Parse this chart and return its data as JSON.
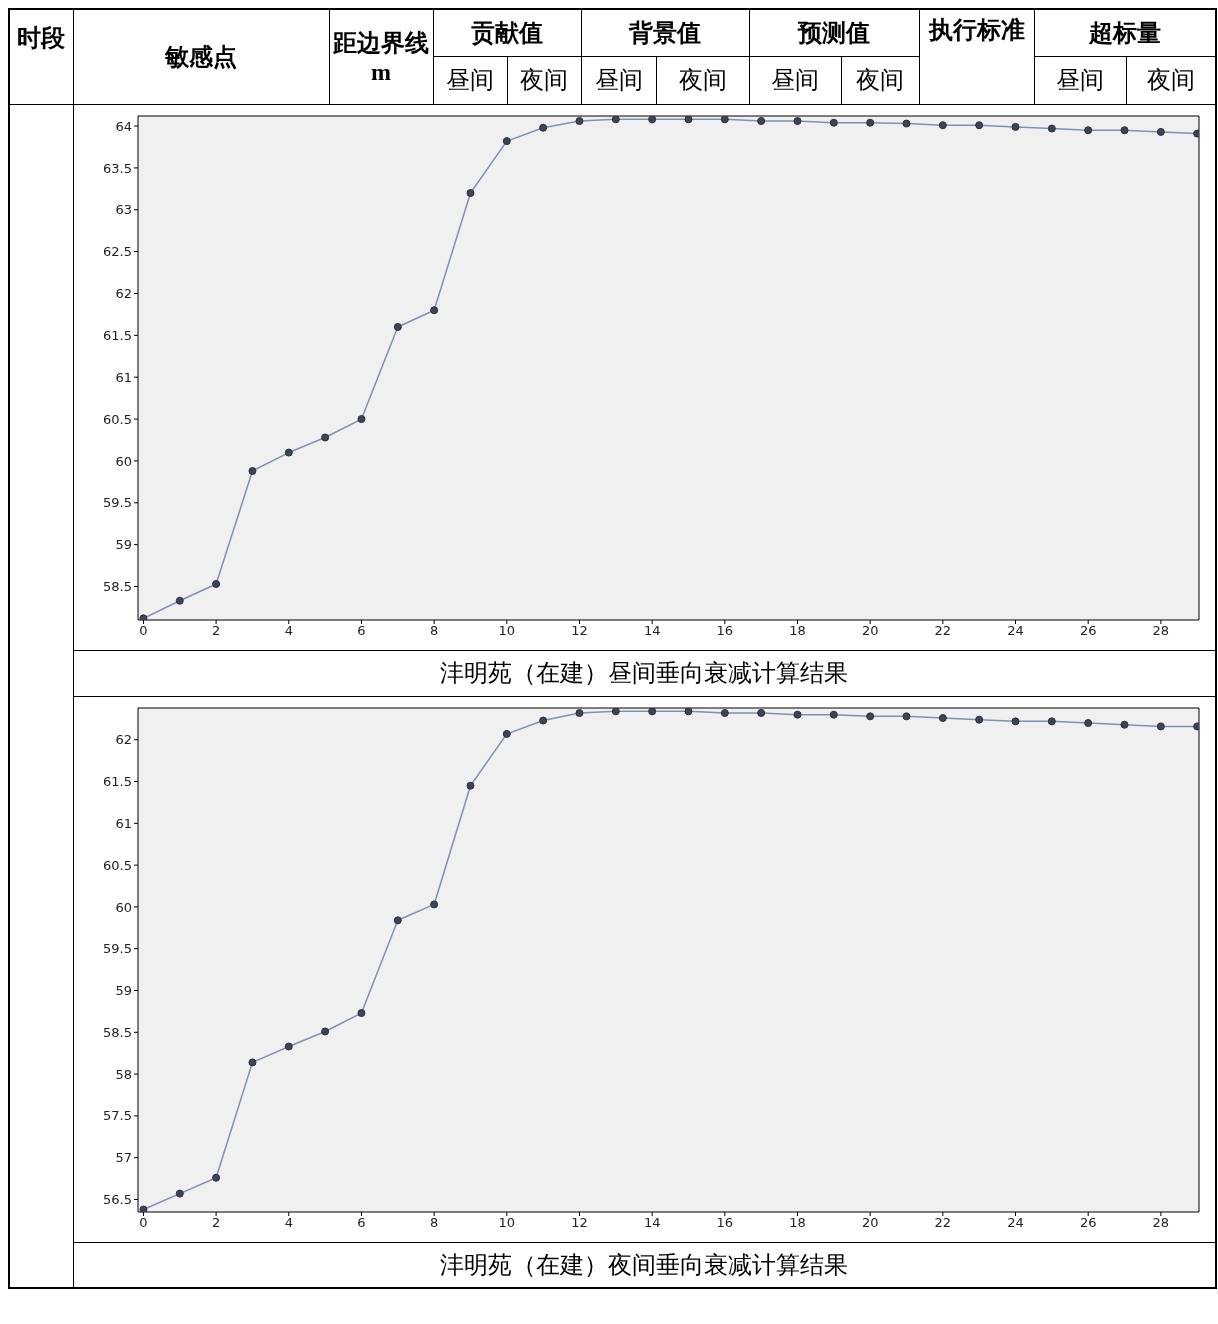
{
  "chart_data": [
    {
      "type": "other",
      "annotations": [
        "时段",
        "敏感点",
        "距边界线 m",
        "贡献值",
        "背景值",
        "预测值",
        "执行标准",
        "超标量",
        "昼间",
        "夜间",
        "昼间",
        "夜间",
        "昼间",
        "夜间",
        "昼间",
        "夜间"
      ]
    },
    {
      "type": "line",
      "title": "沣明苑（在建）昼间垂向衰减计算结果",
      "x": [
        0,
        1,
        2,
        3,
        4,
        5,
        6,
        7,
        8,
        9,
        10,
        11,
        12,
        13,
        14,
        15,
        16,
        17,
        18,
        19,
        20,
        21,
        22,
        23,
        24,
        25,
        26,
        27,
        28,
        29
      ],
      "series": [
        {
          "color": "#7f8fb5",
          "values": [
            58.12,
            58.33,
            58.53,
            59.88,
            60.1,
            60.28,
            60.5,
            61.6,
            61.8,
            63.2,
            63.82,
            63.98,
            64.06,
            64.08,
            64.08,
            64.08,
            64.08,
            64.06,
            64.06,
            64.04,
            64.04,
            64.03,
            64.01,
            64.01,
            63.99,
            63.97,
            63.95,
            63.95,
            63.93,
            63.91
          ]
        }
      ],
      "xlim": [
        -0.15,
        29.05
      ],
      "xticks": [
        0,
        2,
        4,
        6,
        8,
        10,
        12,
        14,
        16,
        18,
        20,
        22,
        24,
        26,
        28
      ],
      "ylim": [
        58.1,
        64.12
      ],
      "yticks": [
        58.5,
        59,
        59.5,
        60,
        60.5,
        61,
        61.5,
        62,
        62.5,
        63,
        63.5,
        64
      ],
      "marker": "circle",
      "grid": false
    },
    {
      "type": "line",
      "title": "沣明苑（在建）夜间垂向衰减计算结果",
      "x": [
        0,
        1,
        2,
        3,
        4,
        5,
        6,
        7,
        8,
        9,
        10,
        11,
        12,
        13,
        14,
        15,
        16,
        17,
        18,
        19,
        20,
        21,
        22,
        23,
        24,
        25,
        26,
        27,
        28,
        29
      ],
      "series": [
        {
          "color": "#7f8fb5",
          "values": [
            56.38,
            56.57,
            56.76,
            58.14,
            58.33,
            58.51,
            58.73,
            59.84,
            60.03,
            61.45,
            62.07,
            62.23,
            62.32,
            62.34,
            62.34,
            62.34,
            62.32,
            62.32,
            62.3,
            62.3,
            62.28,
            62.28,
            62.26,
            62.24,
            62.22,
            62.22,
            62.2,
            62.18,
            62.16,
            62.16
          ]
        }
      ],
      "xlim": [
        -0.15,
        29.05
      ],
      "xticks": [
        0,
        2,
        4,
        6,
        8,
        10,
        12,
        14,
        16,
        18,
        20,
        22,
        24,
        26,
        28
      ],
      "ylim": [
        56.35,
        62.38
      ],
      "yticks": [
        56.5,
        57,
        57.5,
        58,
        58.5,
        59,
        59.5,
        60,
        60.5,
        61,
        61.5,
        62
      ],
      "marker": "circle",
      "grid": false
    }
  ]
}
